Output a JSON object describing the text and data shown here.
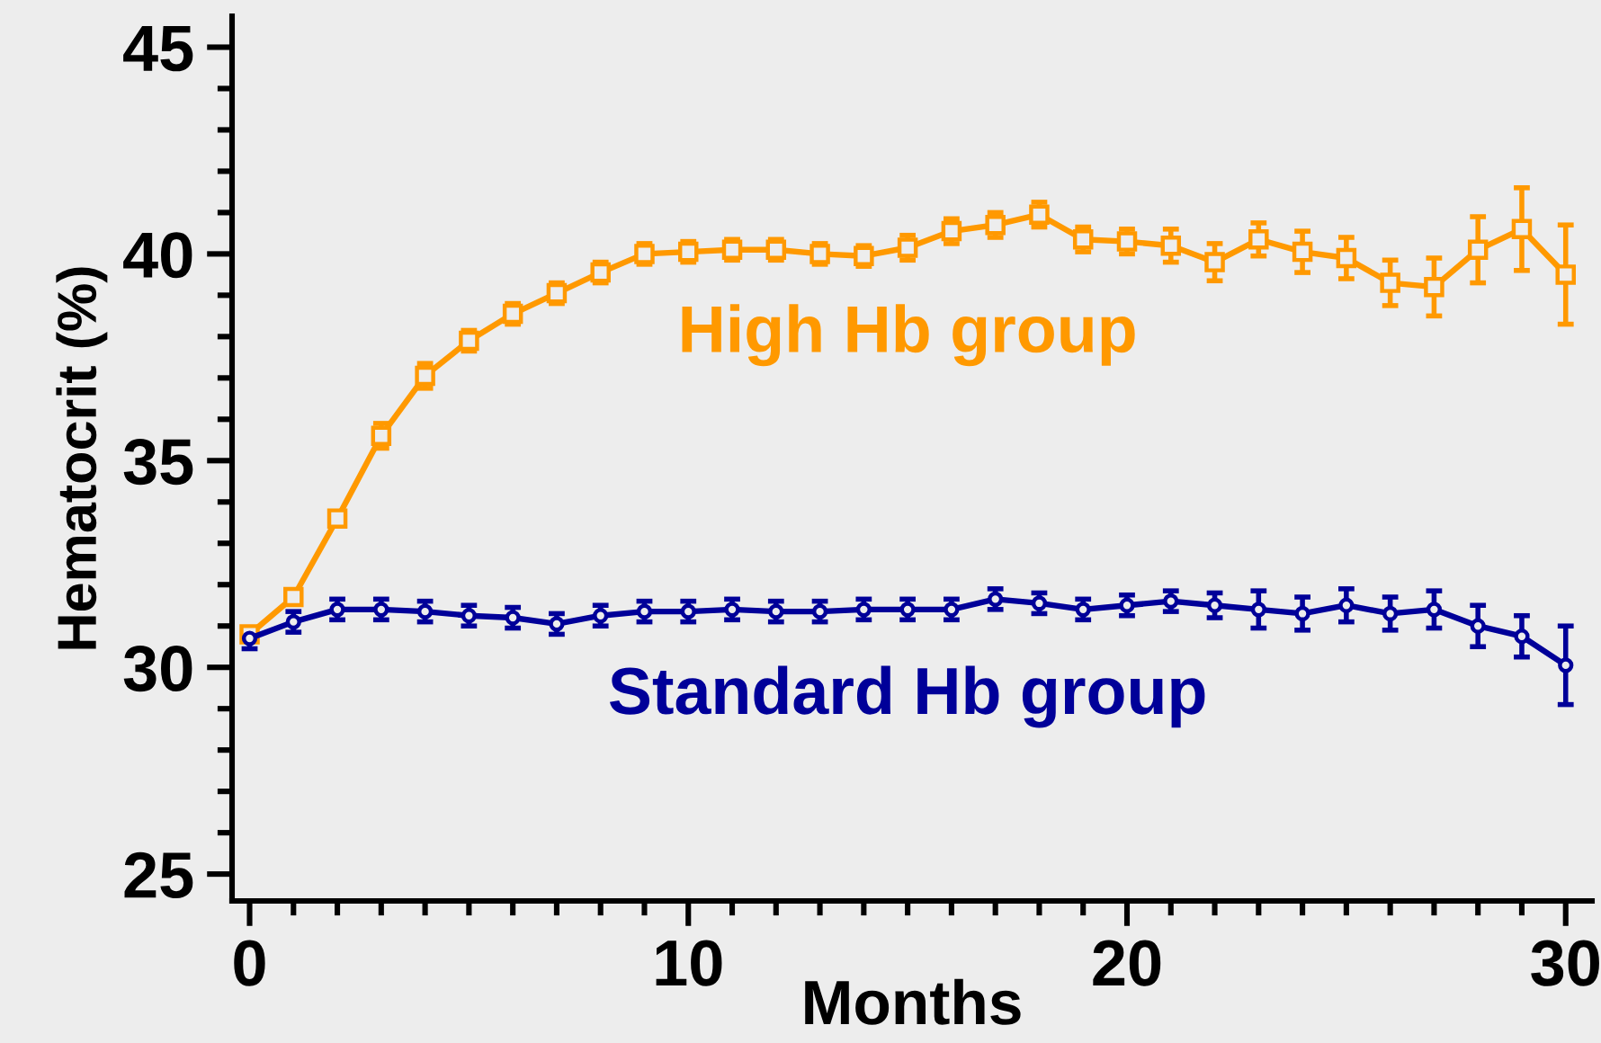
{
  "chart_data": {
    "type": "line",
    "xlabel": "Months",
    "ylabel": "Hematocrit (%)",
    "x": [
      0,
      1,
      2,
      3,
      4,
      5,
      6,
      7,
      8,
      9,
      10,
      11,
      12,
      13,
      14,
      15,
      16,
      17,
      18,
      19,
      20,
      21,
      22,
      23,
      24,
      25,
      26,
      27,
      28,
      29,
      30
    ],
    "series": [
      {
        "name": "High Hb group",
        "color": "#ff9900",
        "marker": "square",
        "values": [
          30.8,
          31.7,
          33.6,
          35.6,
          37.05,
          37.9,
          38.55,
          39.05,
          39.55,
          40.0,
          40.05,
          40.1,
          40.1,
          40.0,
          39.95,
          40.15,
          40.55,
          40.7,
          40.95,
          40.35,
          40.3,
          40.2,
          39.8,
          40.35,
          40.05,
          39.9,
          39.3,
          39.2,
          40.1,
          40.6,
          39.5
        ],
        "errors": [
          null,
          null,
          null,
          0.3,
          0.3,
          0.25,
          0.25,
          0.25,
          0.25,
          0.25,
          0.25,
          0.25,
          0.25,
          0.25,
          0.25,
          0.3,
          0.3,
          0.3,
          0.3,
          0.3,
          0.3,
          0.4,
          0.45,
          0.4,
          0.5,
          0.5,
          0.55,
          0.7,
          0.8,
          1.0,
          1.2
        ]
      },
      {
        "name": "Standard Hb group",
        "color": "#000099",
        "marker": "circle",
        "values": [
          30.7,
          31.1,
          31.4,
          31.4,
          31.35,
          31.25,
          31.2,
          31.05,
          31.25,
          31.35,
          31.35,
          31.4,
          31.35,
          31.35,
          31.4,
          31.4,
          31.4,
          31.65,
          31.55,
          31.4,
          31.5,
          31.6,
          31.5,
          31.4,
          31.3,
          31.5,
          31.3,
          31.4,
          31.0,
          30.75,
          30.05
        ],
        "errors": [
          0.25,
          0.25,
          0.25,
          0.25,
          0.25,
          0.25,
          0.25,
          0.25,
          0.25,
          0.25,
          0.25,
          0.25,
          0.25,
          0.25,
          0.25,
          0.25,
          0.25,
          0.25,
          0.25,
          0.25,
          0.25,
          0.25,
          0.3,
          0.45,
          0.4,
          0.4,
          0.4,
          0.45,
          0.5,
          0.5,
          0.95
        ]
      }
    ],
    "xlim": [
      -0.4,
      30.6
    ],
    "xticks": [
      0,
      {
        "value": 1,
        "label": null
      },
      {
        "value": 2,
        "label": null
      },
      {
        "value": 3,
        "label": null
      },
      {
        "value": 4,
        "label": null
      },
      {
        "value": 5,
        "label": null
      },
      {
        "value": 6,
        "label": null
      },
      {
        "value": 7,
        "label": null
      },
      {
        "value": 8,
        "label": null
      },
      {
        "value": 9,
        "label": null
      },
      10,
      {
        "value": 11,
        "label": null
      },
      {
        "value": 12,
        "label": null
      },
      {
        "value": 13,
        "label": null
      },
      {
        "value": 14,
        "label": null
      },
      {
        "value": 15,
        "label": null
      },
      {
        "value": 16,
        "label": null
      },
      {
        "value": 17,
        "label": null
      },
      {
        "value": 18,
        "label": null
      },
      {
        "value": 19,
        "label": null
      },
      20,
      {
        "value": 21,
        "label": null
      },
      {
        "value": 22,
        "label": null
      },
      {
        "value": 23,
        "label": null
      },
      {
        "value": 24,
        "label": null
      },
      {
        "value": 25,
        "label": null
      },
      {
        "value": 26,
        "label": null
      },
      {
        "value": 27,
        "label": null
      },
      {
        "value": 28,
        "label": null
      },
      {
        "value": 29,
        "label": null
      },
      30
    ],
    "ylim": [
      24.35,
      45.75
    ],
    "yticks": [
      25,
      {
        "value": 26,
        "label": null
      },
      {
        "value": 27,
        "label": null
      },
      {
        "value": 28,
        "label": null
      },
      {
        "value": 29,
        "label": null
      },
      30,
      {
        "value": 31,
        "label": null
      },
      {
        "value": 32,
        "label": null
      },
      {
        "value": 33,
        "label": null
      },
      {
        "value": 34,
        "label": null
      },
      35,
      {
        "value": 36,
        "label": null
      },
      {
        "value": 37,
        "label": null
      },
      {
        "value": 38,
        "label": null
      },
      {
        "value": 39,
        "label": null
      },
      40,
      {
        "value": 41,
        "label": null
      },
      {
        "value": 42,
        "label": null
      },
      {
        "value": 43,
        "label": null
      },
      {
        "value": 44,
        "label": null
      },
      45
    ]
  }
}
